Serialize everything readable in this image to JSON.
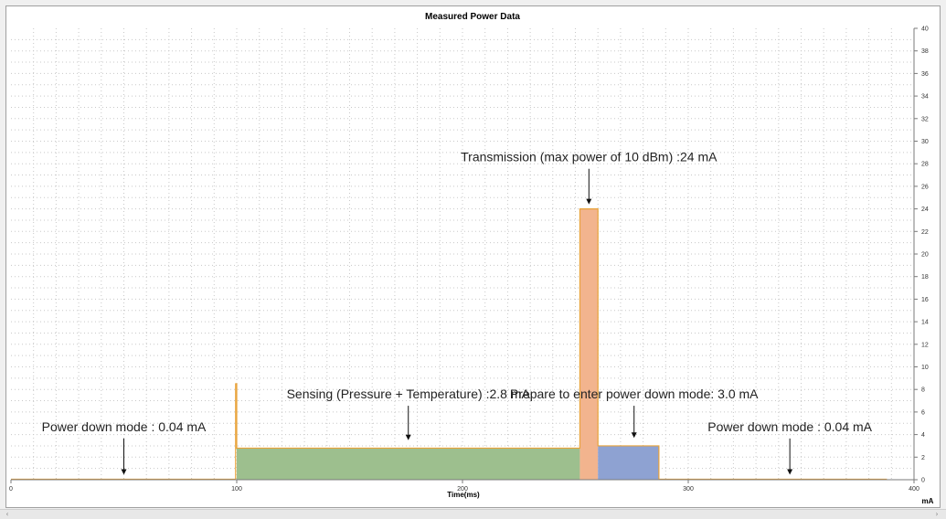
{
  "chart_data": {
    "type": "area",
    "title": "Measured Power Data",
    "xlabel": "Time(ms)",
    "ylabel": "mA",
    "xlim": [
      0,
      400
    ],
    "ylim": [
      0,
      40
    ],
    "x_ticks": [
      0,
      100,
      200,
      300,
      400
    ],
    "y_ticks": [
      0,
      2,
      4,
      6,
      8,
      10,
      12,
      14,
      16,
      18,
      20,
      22,
      24,
      26,
      28,
      30,
      32,
      34,
      36,
      38,
      40
    ],
    "grid": true,
    "series": [
      {
        "x": [
          0,
          99,
          99.5,
          100,
          252,
          260,
          287,
          388
        ],
        "y": [
          0.04,
          0.04,
          8.5,
          2.8,
          24,
          3.0,
          0.04,
          0.04
        ]
      }
    ],
    "segments": [
      {
        "x_start": 0,
        "x_end": 100,
        "value": 0.04,
        "color": "#f2f2f2"
      },
      {
        "x_start": 100,
        "x_end": 252,
        "value": 2.8,
        "color": "#9dbf8e"
      },
      {
        "x_start": 252,
        "x_end": 260,
        "value": 24,
        "color": "#f2b48e"
      },
      {
        "x_start": 260,
        "x_end": 287,
        "value": 3.0,
        "color": "#8ea2d2"
      },
      {
        "x_start": 287,
        "x_end": 388,
        "value": 0.04,
        "color": "#f2f2f2"
      }
    ],
    "trace_color": "#e8a33a",
    "annotations": [
      {
        "text": "Power down mode : 0.04 mA",
        "x": 50,
        "y": 0.04,
        "text_y": 4.3
      },
      {
        "text": "Sensing (Pressure + Temperature) :2.8 mA",
        "x": 176,
        "y": 3.1,
        "text_y": 7.2
      },
      {
        "text": "Transmission (max power of 10 dBm) :24 mA",
        "x": 256,
        "y": 24,
        "text_y": 28.2
      },
      {
        "text": "Prepare to enter power down mode: 3.0 mA",
        "x": 276,
        "y": 3.3,
        "text_y": 7.2
      },
      {
        "text": "Power down mode : 0.04 mA",
        "x": 345,
        "y": 0.04,
        "text_y": 4.3
      }
    ]
  },
  "scrollbar": {
    "left_arrow": "‹",
    "right_arrow": "›"
  }
}
